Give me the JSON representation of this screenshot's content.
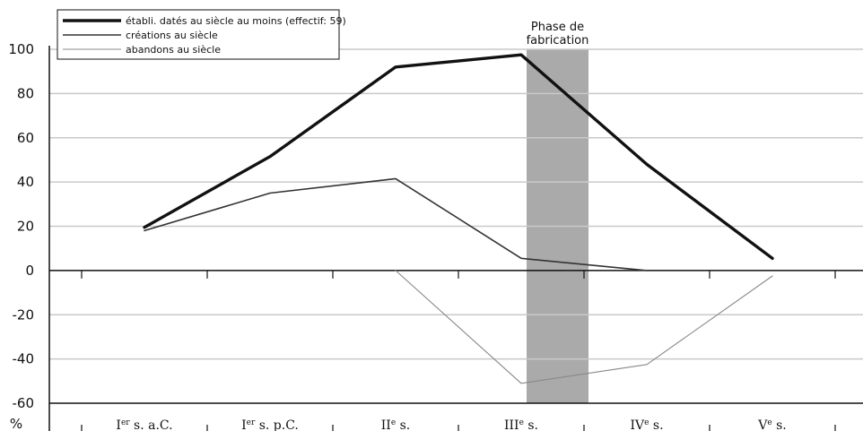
{
  "chart_data": {
    "type": "line",
    "categories": [
      "Ier s. a.C.",
      "Ier s. p.C.",
      "IIe s.",
      "IIIe s.",
      "IVe s.",
      "Ve s."
    ],
    "categories_display": [
      {
        "base": "I",
        "sup": "er",
        "rest": " s. a.C."
      },
      {
        "base": "I",
        "sup": "er",
        "rest": " s. p.C."
      },
      {
        "base": "II",
        "sup": "e",
        "rest": " s."
      },
      {
        "base": "III",
        "sup": "e",
        "rest": " s."
      },
      {
        "base": "IV",
        "sup": "e",
        "rest": " s."
      },
      {
        "base": "V",
        "sup": "e",
        "rest": " s."
      }
    ],
    "series": [
      {
        "name": "établi. datés au siècle au moins (effectif: 59)",
        "values": [
          19.5,
          51.5,
          92,
          97.5,
          48,
          5.5
        ],
        "color": "#111111",
        "weight": "thick"
      },
      {
        "name": "créations au siècle",
        "values": [
          18,
          35,
          41.5,
          5.5,
          0,
          null
        ],
        "color": "#333333",
        "weight": "medium"
      },
      {
        "name": "abandons au siècle",
        "values": [
          null,
          null,
          0,
          -51,
          -42.5,
          -2.5
        ],
        "color": "#888888",
        "weight": "thin"
      }
    ],
    "ylim": [
      -60,
      100
    ],
    "yticks": [
      100,
      80,
      60,
      40,
      20,
      0,
      -20,
      -40,
      -60
    ],
    "ylabel": "%",
    "grid": true,
    "legend": "top-left",
    "annotation": {
      "lines": [
        "Phase de",
        "fabrication"
      ],
      "span_from": "IIIe s.",
      "span_note": "shaded band just after IIIe s.",
      "color": "#aaaaaa"
    }
  }
}
